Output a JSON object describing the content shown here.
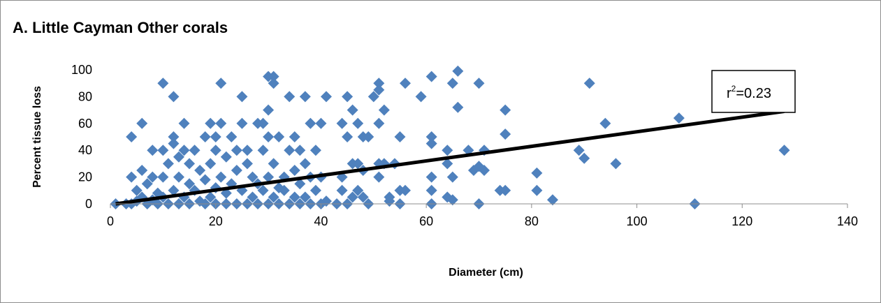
{
  "chart_data": {
    "type": "scatter",
    "title": "A.  Little Cayman  Other corals",
    "xlabel": "Diameter (cm)",
    "ylabel": "Percent tissue loss",
    "xlim": [
      0,
      140
    ],
    "ylim": [
      0,
      100
    ],
    "xticks": [
      "0",
      "20",
      "40",
      "60",
      "80",
      "100",
      "120",
      "140"
    ],
    "yticks": [
      "0",
      "20",
      "40",
      "60",
      "80",
      "100"
    ],
    "grid": false,
    "marker_color": "#4F81BD",
    "trendline_color": "#000000",
    "trendline": {
      "x": [
        1,
        128
      ],
      "y": [
        0,
        69
      ]
    },
    "annotation": {
      "r_prefix": "r",
      "superscript": "2",
      "value": "=0.23"
    },
    "points": [
      {
        "x": 1,
        "y": 0
      },
      {
        "x": 3,
        "y": 0
      },
      {
        "x": 4,
        "y": 0
      },
      {
        "x": 4,
        "y": 20
      },
      {
        "x": 4,
        "y": 50
      },
      {
        "x": 5,
        "y": 2
      },
      {
        "x": 5,
        "y": 10
      },
      {
        "x": 6,
        "y": 5
      },
      {
        "x": 6,
        "y": 25
      },
      {
        "x": 6,
        "y": 60
      },
      {
        "x": 7,
        "y": 0
      },
      {
        "x": 7,
        "y": 15
      },
      {
        "x": 8,
        "y": 3
      },
      {
        "x": 8,
        "y": 20
      },
      {
        "x": 8,
        "y": 40
      },
      {
        "x": 9,
        "y": 0
      },
      {
        "x": 9,
        "y": 8
      },
      {
        "x": 10,
        "y": 5
      },
      {
        "x": 10,
        "y": 20
      },
      {
        "x": 10,
        "y": 40
      },
      {
        "x": 10,
        "y": 90
      },
      {
        "x": 11,
        "y": 0
      },
      {
        "x": 11,
        "y": 30
      },
      {
        "x": 12,
        "y": 10
      },
      {
        "x": 12,
        "y": 45
      },
      {
        "x": 12,
        "y": 50
      },
      {
        "x": 12,
        "y": 80
      },
      {
        "x": 13,
        "y": 0
      },
      {
        "x": 13,
        "y": 20
      },
      {
        "x": 13,
        "y": 35
      },
      {
        "x": 14,
        "y": 5
      },
      {
        "x": 14,
        "y": 40
      },
      {
        "x": 14,
        "y": 60
      },
      {
        "x": 15,
        "y": 0
      },
      {
        "x": 15,
        "y": 15
      },
      {
        "x": 15,
        "y": 30
      },
      {
        "x": 16,
        "y": 10
      },
      {
        "x": 16,
        "y": 40
      },
      {
        "x": 17,
        "y": 2
      },
      {
        "x": 17,
        "y": 25
      },
      {
        "x": 18,
        "y": 0
      },
      {
        "x": 18,
        "y": 18
      },
      {
        "x": 18,
        "y": 50
      },
      {
        "x": 19,
        "y": 5
      },
      {
        "x": 19,
        "y": 30
      },
      {
        "x": 19,
        "y": 60
      },
      {
        "x": 20,
        "y": 0
      },
      {
        "x": 20,
        "y": 12
      },
      {
        "x": 20,
        "y": 40
      },
      {
        "x": 20,
        "y": 50
      },
      {
        "x": 21,
        "y": 20
      },
      {
        "x": 21,
        "y": 60
      },
      {
        "x": 21,
        "y": 90
      },
      {
        "x": 22,
        "y": 0
      },
      {
        "x": 22,
        "y": 8
      },
      {
        "x": 22,
        "y": 35
      },
      {
        "x": 23,
        "y": 15
      },
      {
        "x": 23,
        "y": 50
      },
      {
        "x": 24,
        "y": 0
      },
      {
        "x": 24,
        "y": 25
      },
      {
        "x": 24,
        "y": 40
      },
      {
        "x": 25,
        "y": 10
      },
      {
        "x": 25,
        "y": 60
      },
      {
        "x": 25,
        "y": 80
      },
      {
        "x": 26,
        "y": 0
      },
      {
        "x": 26,
        "y": 30
      },
      {
        "x": 26,
        "y": 40
      },
      {
        "x": 27,
        "y": 5
      },
      {
        "x": 27,
        "y": 20
      },
      {
        "x": 28,
        "y": 0
      },
      {
        "x": 28,
        "y": 15
      },
      {
        "x": 28,
        "y": 60
      },
      {
        "x": 29,
        "y": 10
      },
      {
        "x": 29,
        "y": 40
      },
      {
        "x": 29,
        "y": 60
      },
      {
        "x": 30,
        "y": 0
      },
      {
        "x": 30,
        "y": 20
      },
      {
        "x": 30,
        "y": 50
      },
      {
        "x": 30,
        "y": 70
      },
      {
        "x": 30,
        "y": 95
      },
      {
        "x": 31,
        "y": 5
      },
      {
        "x": 31,
        "y": 30
      },
      {
        "x": 31,
        "y": 90
      },
      {
        "x": 31,
        "y": 95
      },
      {
        "x": 32,
        "y": 0
      },
      {
        "x": 32,
        "y": 12
      },
      {
        "x": 32,
        "y": 50
      },
      {
        "x": 33,
        "y": 10
      },
      {
        "x": 33,
        "y": 20
      },
      {
        "x": 34,
        "y": 0
      },
      {
        "x": 34,
        "y": 40
      },
      {
        "x": 34,
        "y": 80
      },
      {
        "x": 35,
        "y": 5
      },
      {
        "x": 35,
        "y": 25
      },
      {
        "x": 35,
        "y": 50
      },
      {
        "x": 36,
        "y": 0
      },
      {
        "x": 36,
        "y": 15
      },
      {
        "x": 36,
        "y": 40
      },
      {
        "x": 37,
        "y": 5
      },
      {
        "x": 37,
        "y": 30
      },
      {
        "x": 37,
        "y": 80
      },
      {
        "x": 38,
        "y": 0
      },
      {
        "x": 38,
        "y": 20
      },
      {
        "x": 38,
        "y": 60
      },
      {
        "x": 39,
        "y": 10
      },
      {
        "x": 39,
        "y": 40
      },
      {
        "x": 40,
        "y": 0
      },
      {
        "x": 40,
        "y": 20
      },
      {
        "x": 40,
        "y": 60
      },
      {
        "x": 41,
        "y": 2
      },
      {
        "x": 41,
        "y": 80
      },
      {
        "x": 43,
        "y": 0
      },
      {
        "x": 44,
        "y": 10
      },
      {
        "x": 44,
        "y": 20
      },
      {
        "x": 44,
        "y": 60
      },
      {
        "x": 45,
        "y": 0
      },
      {
        "x": 45,
        "y": 50
      },
      {
        "x": 45,
        "y": 80
      },
      {
        "x": 46,
        "y": 5
      },
      {
        "x": 46,
        "y": 30
      },
      {
        "x": 46,
        "y": 70
      },
      {
        "x": 47,
        "y": 10
      },
      {
        "x": 47,
        "y": 30
      },
      {
        "x": 47,
        "y": 60
      },
      {
        "x": 48,
        "y": 5
      },
      {
        "x": 48,
        "y": 25
      },
      {
        "x": 48,
        "y": 50
      },
      {
        "x": 49,
        "y": 0
      },
      {
        "x": 49,
        "y": 50
      },
      {
        "x": 50,
        "y": 80
      },
      {
        "x": 51,
        "y": 20
      },
      {
        "x": 51,
        "y": 30
      },
      {
        "x": 51,
        "y": 60
      },
      {
        "x": 51,
        "y": 85
      },
      {
        "x": 51,
        "y": 90
      },
      {
        "x": 52,
        "y": 30
      },
      {
        "x": 52,
        "y": 70
      },
      {
        "x": 53,
        "y": 2
      },
      {
        "x": 53,
        "y": 5
      },
      {
        "x": 54,
        "y": 30
      },
      {
        "x": 55,
        "y": 0
      },
      {
        "x": 55,
        "y": 10
      },
      {
        "x": 55,
        "y": 50
      },
      {
        "x": 56,
        "y": 10
      },
      {
        "x": 56,
        "y": 90
      },
      {
        "x": 59,
        "y": 80
      },
      {
        "x": 61,
        "y": 0
      },
      {
        "x": 61,
        "y": 10
      },
      {
        "x": 61,
        "y": 20
      },
      {
        "x": 61,
        "y": 45
      },
      {
        "x": 61,
        "y": 50
      },
      {
        "x": 61,
        "y": 95
      },
      {
        "x": 64,
        "y": 5
      },
      {
        "x": 64,
        "y": 30
      },
      {
        "x": 64,
        "y": 40
      },
      {
        "x": 65,
        "y": 3
      },
      {
        "x": 65,
        "y": 20
      },
      {
        "x": 65,
        "y": 90
      },
      {
        "x": 66,
        "y": 72
      },
      {
        "x": 66,
        "y": 99
      },
      {
        "x": 68,
        "y": 40
      },
      {
        "x": 69,
        "y": 25
      },
      {
        "x": 70,
        "y": 0
      },
      {
        "x": 70,
        "y": 28
      },
      {
        "x": 70,
        "y": 90
      },
      {
        "x": 71,
        "y": 25
      },
      {
        "x": 71,
        "y": 40
      },
      {
        "x": 74,
        "y": 10
      },
      {
        "x": 75,
        "y": 10
      },
      {
        "x": 75,
        "y": 52
      },
      {
        "x": 75,
        "y": 70
      },
      {
        "x": 81,
        "y": 10
      },
      {
        "x": 81,
        "y": 23
      },
      {
        "x": 84,
        "y": 3
      },
      {
        "x": 89,
        "y": 40
      },
      {
        "x": 90,
        "y": 34
      },
      {
        "x": 91,
        "y": 90
      },
      {
        "x": 94,
        "y": 60
      },
      {
        "x": 96,
        "y": 30
      },
      {
        "x": 108,
        "y": 64
      },
      {
        "x": 111,
        "y": 0
      },
      {
        "x": 128,
        "y": 40
      }
    ]
  }
}
